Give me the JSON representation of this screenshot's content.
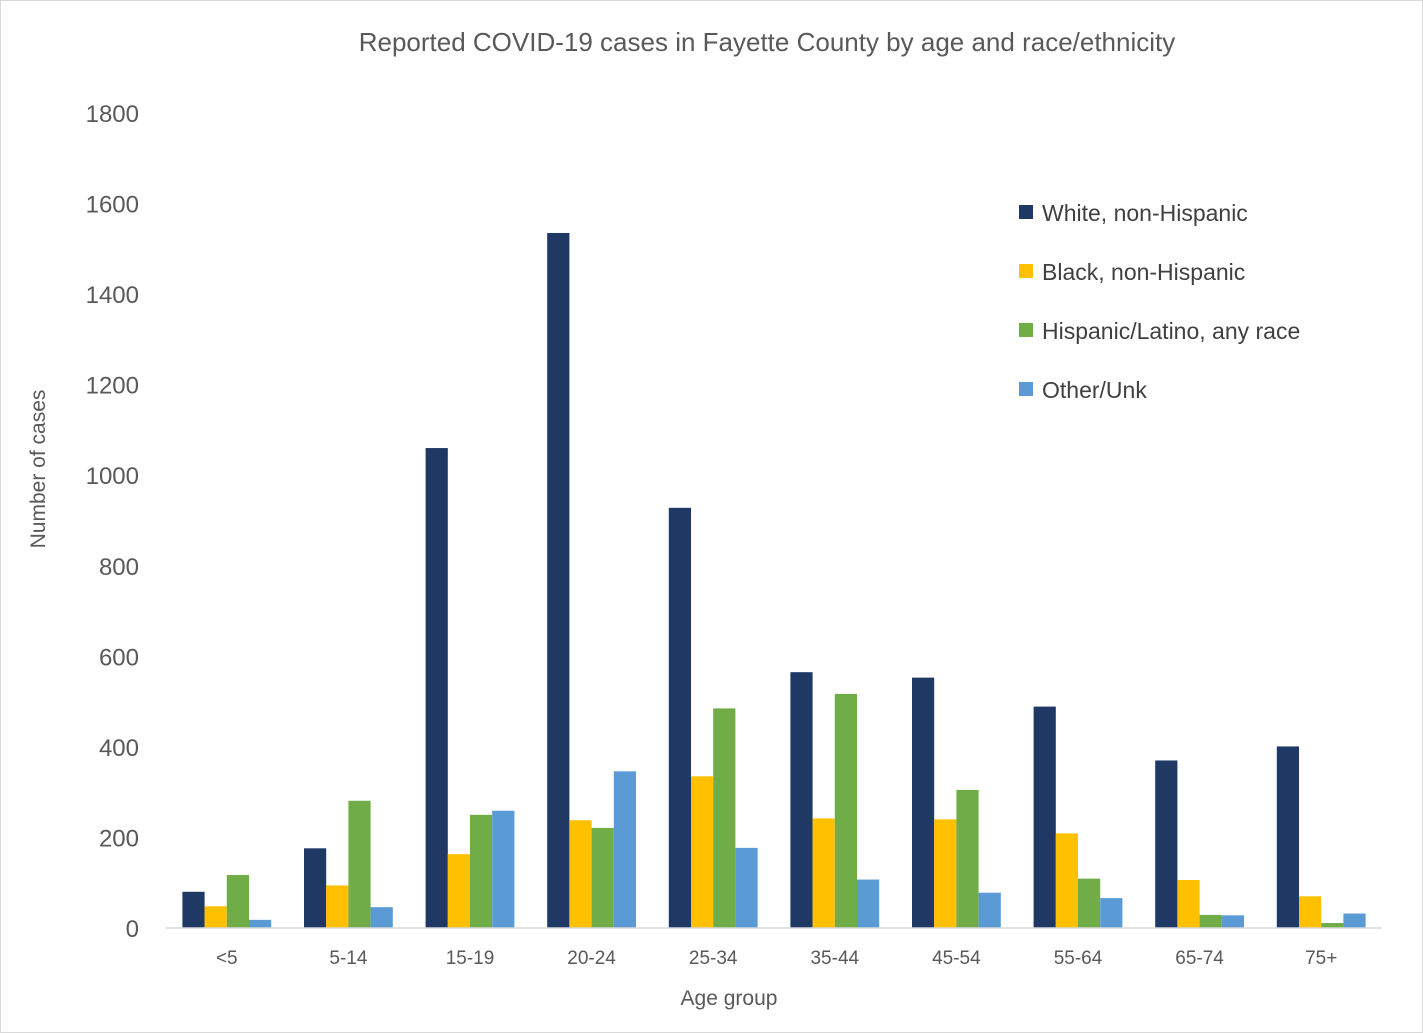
{
  "chart_data": {
    "type": "bar",
    "title": "Reported COVID-19 cases in Fayette County by age and race/ethnicity",
    "xlabel": "Age group",
    "ylabel": "Number of cases",
    "ylim": [
      0,
      1800
    ],
    "yticks": [
      0,
      200,
      400,
      600,
      800,
      1000,
      1200,
      1400,
      1600,
      1800
    ],
    "grid": false,
    "legend_position": "top-right",
    "categories": [
      "<5",
      "5-14",
      "15-19",
      "20-24",
      "25-34",
      "35-44",
      "45-54",
      "55-64",
      "65-74",
      "75+"
    ],
    "series": [
      {
        "name": "White, non-Hispanic",
        "color": "#1f3864",
        "values": [
          80,
          176,
          1060,
          1535,
          928,
          565,
          553,
          489,
          370,
          401
        ]
      },
      {
        "name": "Black, non-Hispanic",
        "color": "#ffc000",
        "values": [
          48,
          94,
          163,
          238,
          335,
          242,
          240,
          209,
          106,
          70
        ]
      },
      {
        "name": "Hispanic/Latino, any race",
        "color": "#70ad47",
        "values": [
          117,
          281,
          250,
          221,
          485,
          517,
          305,
          109,
          29,
          11
        ]
      },
      {
        "name": "Other/Unk",
        "color": "#5b9bd5",
        "values": [
          18,
          46,
          259,
          346,
          177,
          107,
          78,
          66,
          28,
          32
        ]
      }
    ]
  }
}
